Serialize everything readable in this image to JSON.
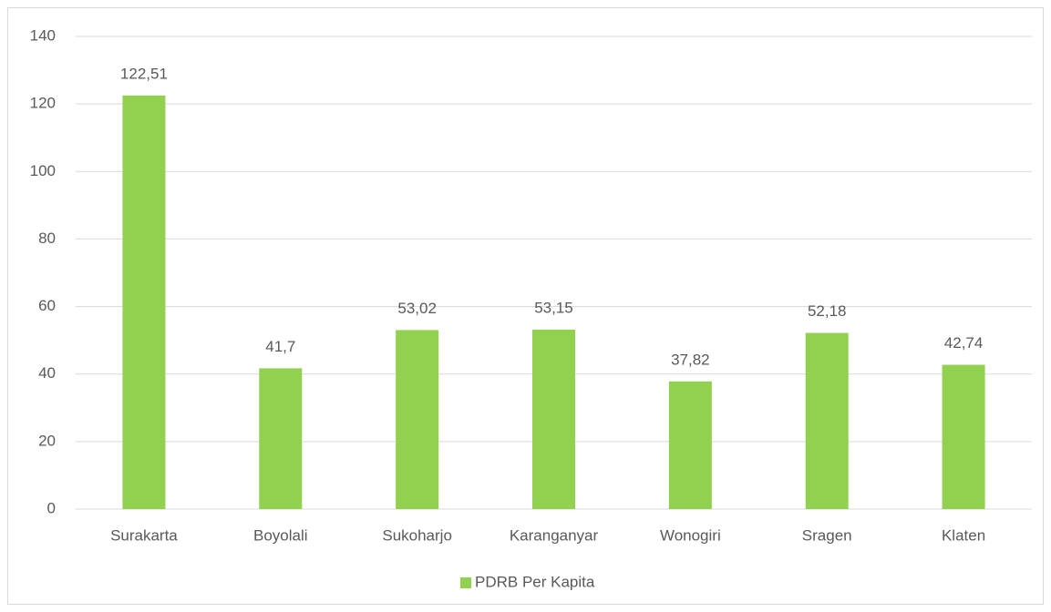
{
  "chart_data": {
    "type": "bar",
    "categories": [
      "Surakarta",
      "Boyolali",
      "Sukoharjo",
      "Karanganyar",
      "Wonogiri",
      "Sragen",
      "Klaten"
    ],
    "series": [
      {
        "name": "PDRB Per Kapita",
        "color": "#92d050",
        "values": [
          122.51,
          41.7,
          53.02,
          53.15,
          37.82,
          52.18,
          42.74
        ],
        "value_labels": [
          "122,51",
          "41,7",
          "53,02",
          "53,15",
          "37,82",
          "52,18",
          "42,74"
        ]
      }
    ],
    "ylim": [
      0,
      140
    ],
    "yticks": [
      0,
      20,
      40,
      60,
      80,
      100,
      120,
      140
    ],
    "grid": true,
    "legend": "bottom"
  }
}
